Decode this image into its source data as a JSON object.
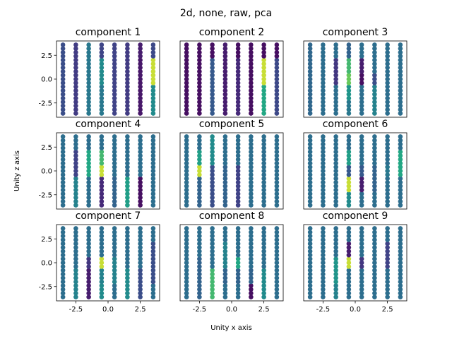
{
  "chart_data": {
    "type": "scatter",
    "title": "2d, none, raw, pca",
    "xlabel": "Unity x axis",
    "ylabel": "Unity z axis",
    "xlim": [
      -4,
      4
    ],
    "ylim": [
      -4,
      4
    ],
    "xticks": [
      "-2.5",
      "0.0",
      "2.5"
    ],
    "yticks": [
      "2.5",
      "0.0",
      "-2.5"
    ],
    "grid": false,
    "colormap": "viridis",
    "grid_x": [
      -3.5,
      -2.5,
      -1.5,
      -0.5,
      0.5,
      1.5,
      2.5,
      3.5
    ],
    "grid_z": [
      3,
      1.5,
      0,
      -1.5,
      -3
    ],
    "panels": [
      {
        "title": "component 1",
        "values": [
          [
            0.3,
            0.22,
            0.5,
            0.26,
            0.25,
            0.22,
            0.1,
            0.28
          ],
          [
            0.3,
            0.22,
            0.5,
            0.6,
            0.25,
            0.22,
            0.08,
            0.95
          ],
          [
            0.3,
            0.22,
            0.5,
            0.6,
            0.25,
            0.22,
            0.08,
            0.95
          ],
          [
            0.3,
            0.22,
            0.5,
            0.5,
            0.25,
            0.22,
            0.08,
            0.6
          ],
          [
            0.3,
            0.22,
            0.5,
            0.5,
            0.25,
            0.22,
            0.08,
            0.6
          ]
        ]
      },
      {
        "title": "component 2",
        "values": [
          [
            0.05,
            0.05,
            0.05,
            0.1,
            0.05,
            0.05,
            0.05,
            0.05
          ],
          [
            0.05,
            0.05,
            0.35,
            0.1,
            0.15,
            0.05,
            0.95,
            0.28
          ],
          [
            0.05,
            0.05,
            0.35,
            0.1,
            0.15,
            0.05,
            0.95,
            0.28
          ],
          [
            0.05,
            0.05,
            0.35,
            0.1,
            0.15,
            0.05,
            0.75,
            0.28
          ],
          [
            0.05,
            0.05,
            0.35,
            0.1,
            0.15,
            0.05,
            0.75,
            0.28
          ]
        ]
      },
      {
        "title": "component 3",
        "values": [
          [
            0.42,
            0.45,
            0.45,
            0.4,
            0.45,
            0.45,
            0.45,
            0.45
          ],
          [
            0.42,
            0.45,
            0.2,
            0.8,
            0.1,
            0.45,
            0.45,
            0.45
          ],
          [
            0.42,
            0.45,
            0.2,
            0.85,
            0.05,
            0.3,
            0.45,
            0.45
          ],
          [
            0.42,
            0.45,
            0.45,
            0.65,
            0.45,
            0.55,
            0.45,
            0.45
          ],
          [
            0.42,
            0.45,
            0.45,
            0.5,
            0.45,
            0.55,
            0.45,
            0.45
          ]
        ]
      },
      {
        "title": "component 4",
        "values": [
          [
            0.45,
            0.45,
            0.45,
            0.45,
            0.45,
            0.45,
            0.45,
            0.45
          ],
          [
            0.45,
            0.25,
            0.75,
            0.8,
            0.45,
            0.45,
            0.45,
            0.45
          ],
          [
            0.45,
            0.25,
            0.75,
            0.95,
            0.45,
            0.45,
            0.45,
            0.45
          ],
          [
            0.45,
            0.55,
            0.45,
            0.15,
            0.4,
            0.7,
            0.05,
            0.45
          ],
          [
            0.45,
            0.55,
            0.45,
            0.15,
            0.4,
            0.7,
            0.05,
            0.45
          ]
        ]
      },
      {
        "title": "component 5",
        "values": [
          [
            0.45,
            0.45,
            0.6,
            0.45,
            0.45,
            0.45,
            0.45,
            0.45
          ],
          [
            0.45,
            0.7,
            0.6,
            0.45,
            0.45,
            0.45,
            0.45,
            0.45
          ],
          [
            0.45,
            0.95,
            0.3,
            0.4,
            0.25,
            0.45,
            0.45,
            0.45
          ],
          [
            0.45,
            0.4,
            0.3,
            0.4,
            0.25,
            0.45,
            0.45,
            0.45
          ],
          [
            0.45,
            0.4,
            0.3,
            0.4,
            0.25,
            0.45,
            0.45,
            0.45
          ]
        ]
      },
      {
        "title": "component 6",
        "values": [
          [
            0.45,
            0.45,
            0.45,
            0.45,
            0.45,
            0.45,
            0.45,
            0.45
          ],
          [
            0.45,
            0.45,
            0.45,
            0.7,
            0.45,
            0.45,
            0.45,
            0.75
          ],
          [
            0.45,
            0.45,
            0.45,
            0.35,
            0.35,
            0.4,
            0.5,
            0.75
          ],
          [
            0.45,
            0.45,
            0.45,
            0.95,
            0.1,
            0.4,
            0.45,
            0.45
          ],
          [
            0.45,
            0.45,
            0.45,
            0.6,
            0.45,
            0.45,
            0.45,
            0.45
          ]
        ]
      },
      {
        "title": "component 7",
        "values": [
          [
            0.45,
            0.45,
            0.45,
            0.45,
            0.45,
            0.45,
            0.45,
            0.45
          ],
          [
            0.45,
            0.45,
            0.45,
            0.45,
            0.45,
            0.45,
            0.45,
            0.3
          ],
          [
            0.45,
            0.45,
            0.2,
            0.95,
            0.55,
            0.45,
            0.45,
            0.3
          ],
          [
            0.45,
            0.55,
            0.1,
            0.55,
            0.55,
            0.6,
            0.3,
            0.3
          ],
          [
            0.45,
            0.55,
            0.1,
            0.6,
            0.45,
            0.6,
            0.3,
            0.45
          ]
        ]
      },
      {
        "title": "component 8",
        "values": [
          [
            0.45,
            0.45,
            0.45,
            0.45,
            0.45,
            0.45,
            0.45,
            0.45
          ],
          [
            0.45,
            0.45,
            0.45,
            0.55,
            0.45,
            0.45,
            0.45,
            0.45
          ],
          [
            0.45,
            0.4,
            0.45,
            0.55,
            0.75,
            0.45,
            0.45,
            0.45
          ],
          [
            0.45,
            0.4,
            0.8,
            0.4,
            0.4,
            0.4,
            0.6,
            0.45
          ],
          [
            0.45,
            0.4,
            0.8,
            0.45,
            0.45,
            0.05,
            0.6,
            0.45
          ]
        ]
      },
      {
        "title": "component 9",
        "values": [
          [
            0.45,
            0.45,
            0.45,
            0.45,
            0.45,
            0.45,
            0.45,
            0.45
          ],
          [
            0.45,
            0.45,
            0.45,
            0.1,
            0.45,
            0.45,
            0.25,
            0.45
          ],
          [
            0.45,
            0.45,
            0.65,
            0.95,
            0.2,
            0.45,
            0.25,
            0.45
          ],
          [
            0.45,
            0.45,
            0.65,
            0.45,
            0.45,
            0.45,
            0.45,
            0.45
          ],
          [
            0.45,
            0.45,
            0.55,
            0.45,
            0.45,
            0.45,
            0.45,
            0.45
          ]
        ]
      }
    ]
  }
}
